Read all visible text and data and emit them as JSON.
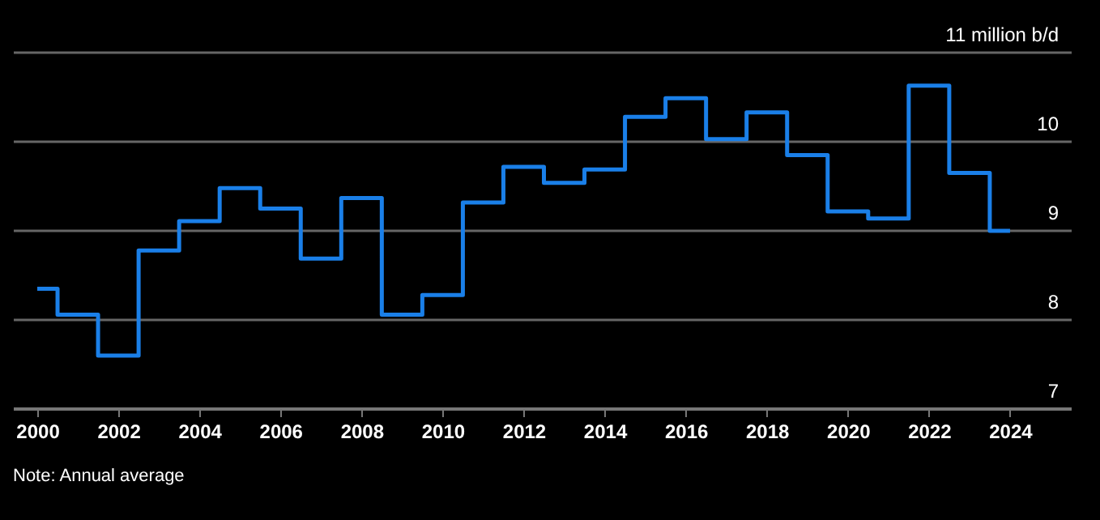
{
  "chart_data": {
    "type": "step",
    "x": [
      2000,
      2001,
      2002,
      2003,
      2004,
      2005,
      2006,
      2007,
      2008,
      2009,
      2010,
      2011,
      2012,
      2013,
      2014,
      2015,
      2016,
      2017,
      2018,
      2019,
      2020,
      2021,
      2022,
      2023,
      2024
    ],
    "series": [
      {
        "color": "#1a7fe8",
        "values": [
          8.34,
          8.05,
          7.59,
          8.77,
          9.1,
          9.47,
          9.24,
          8.68,
          9.36,
          8.05,
          8.27,
          9.31,
          9.71,
          9.53,
          9.68,
          10.27,
          10.48,
          10.02,
          10.32,
          9.84,
          9.21,
          9.13,
          10.62,
          9.64,
          8.99
        ]
      }
    ],
    "xlim": [
      1999.4,
      2025.5
    ],
    "xticks": [
      2000,
      2002,
      2004,
      2006,
      2008,
      2010,
      2012,
      2014,
      2016,
      2018,
      2020,
      2022,
      2024
    ],
    "ylim": [
      7,
      11
    ],
    "yticks": [
      7,
      8,
      9,
      10,
      {
        "value": 11,
        "label": "11 million b/d"
      }
    ],
    "grid": "y",
    "legend": false,
    "annotations": [
      "Note: Annual average"
    ]
  }
}
